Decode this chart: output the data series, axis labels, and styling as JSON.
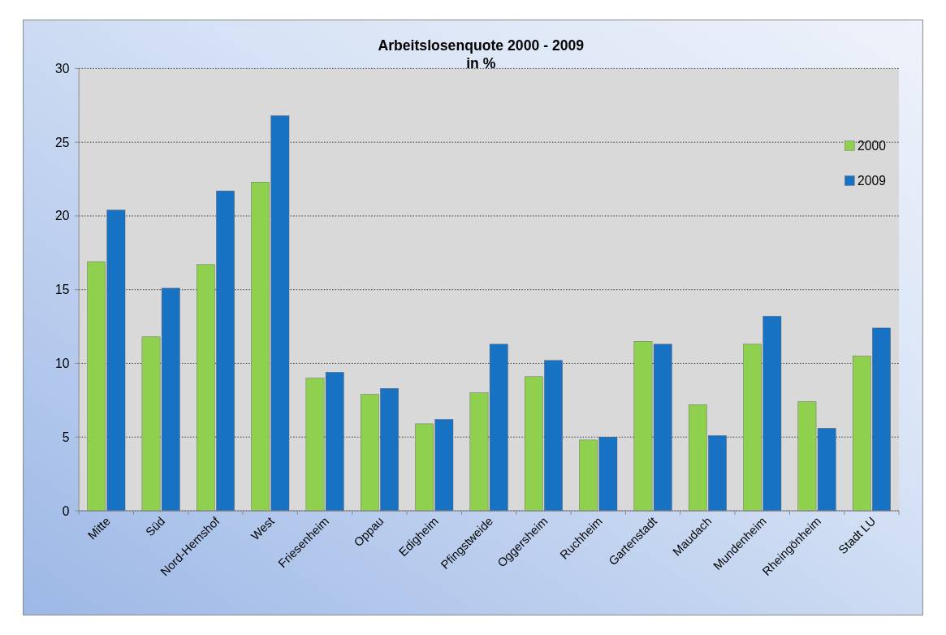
{
  "chart_data": {
    "type": "bar",
    "title": "Arbeitslosenquote 2000 - 2009",
    "subtitle": "in %",
    "categories": [
      "Mitte",
      "Süd",
      "Nord-Hemshof",
      "West",
      "Friesenheim",
      "Oppau",
      "Edigheim",
      "Pfingstweide",
      "Oggersheim",
      "Ruchheim",
      "Gartenstadt",
      "Maudach",
      "Mundenheim",
      "Rheingönheim",
      "Stadt LU"
    ],
    "series": [
      {
        "name": "2000",
        "color": "#8fd14f",
        "values": [
          16.9,
          11.8,
          16.7,
          22.3,
          9.0,
          7.9,
          5.9,
          8.0,
          9.1,
          4.8,
          11.5,
          7.2,
          11.3,
          7.4,
          10.5
        ]
      },
      {
        "name": "2009",
        "color": "#1872c4",
        "values": [
          20.4,
          15.1,
          21.7,
          26.8,
          9.4,
          8.3,
          6.2,
          11.3,
          10.2,
          5.0,
          11.3,
          5.1,
          13.2,
          5.6,
          12.4
        ]
      }
    ],
    "ylim": [
      0,
      30
    ],
    "yticks": [
      0,
      5,
      10,
      15,
      20,
      25,
      30
    ],
    "grid": "y",
    "legend": "right"
  }
}
